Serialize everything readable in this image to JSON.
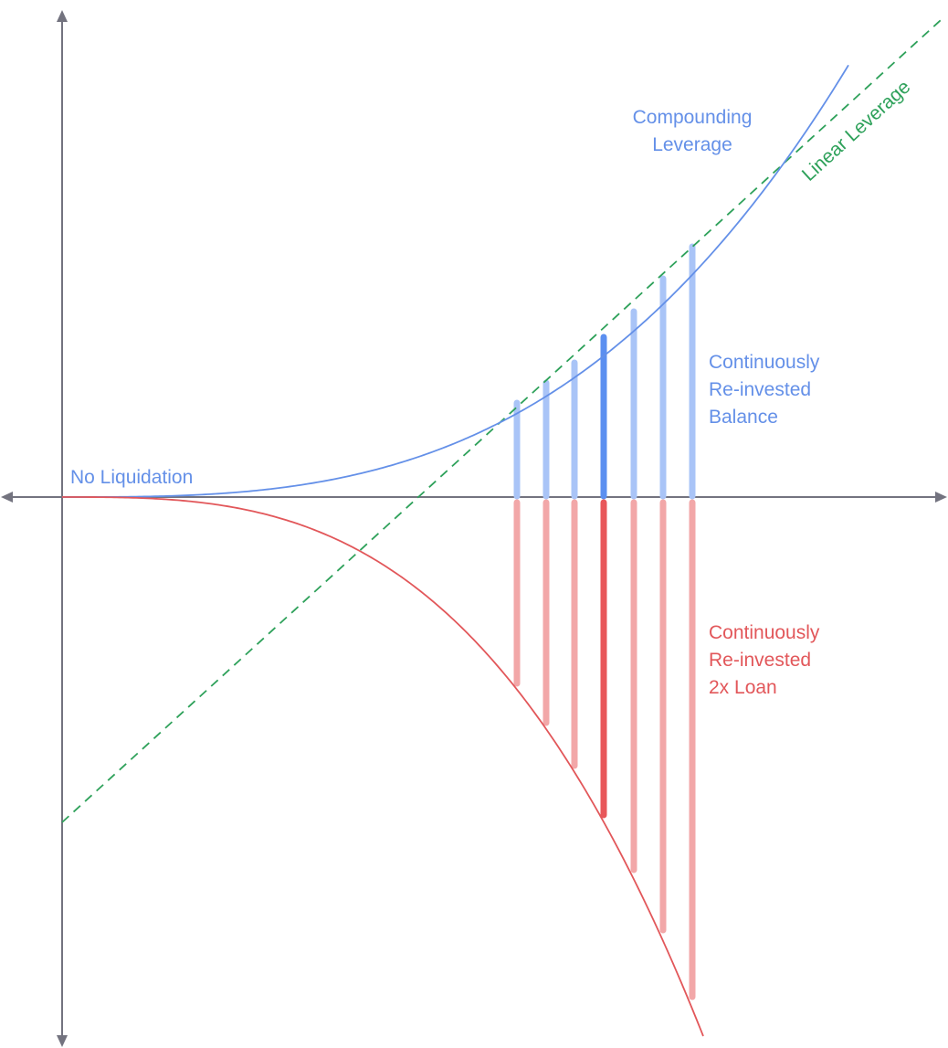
{
  "labels": {
    "no_liquidation": "No Liquidation",
    "compounding_line1": "Compounding",
    "compounding_line2": "Leverage",
    "linear_leverage": "Linear Leverage",
    "balance_line1": "Continuously",
    "balance_line2": "Re-invested",
    "balance_line3": "Balance",
    "loan_line1": "Continuously",
    "loan_line2": "Re-invested",
    "loan_line3": "2x Loan"
  },
  "colors": {
    "axis": "#73737f",
    "compounding_curve": "#6490e8",
    "loan_curve": "#e2575a",
    "linear_line": "#2ea15a",
    "balance_bar": "#a9c4f7",
    "balance_bar_highlight": "#5b8ff0",
    "loan_bar": "#f2a7a8",
    "loan_bar_highlight": "#e8575a"
  },
  "bars": {
    "count": 7,
    "highlight_index": 3
  }
}
